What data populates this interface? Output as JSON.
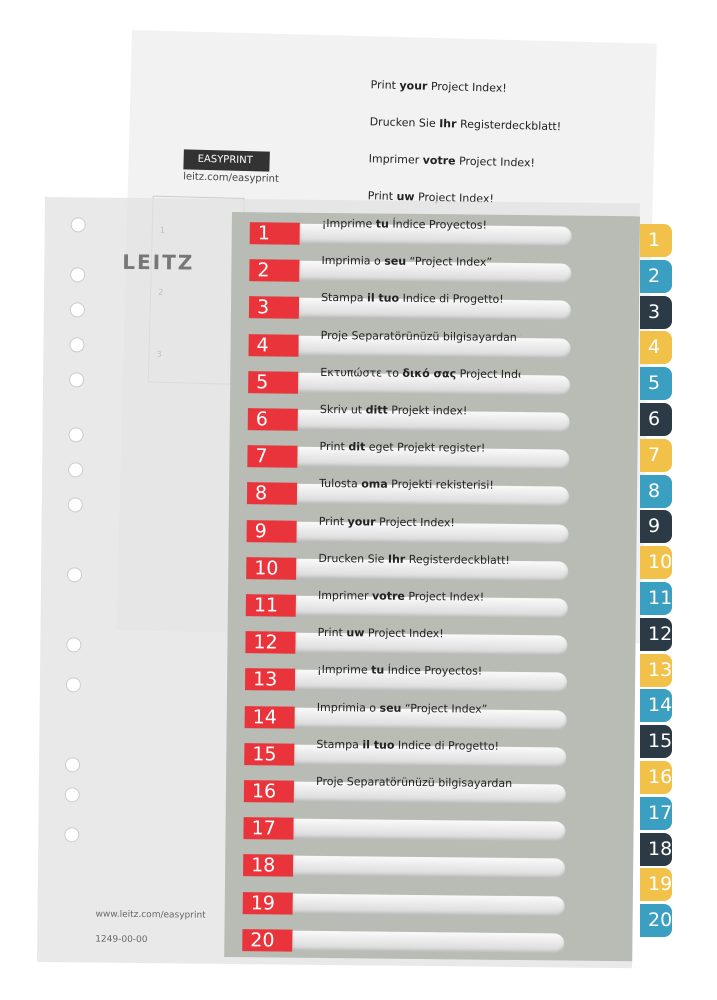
{
  "back_sheet": {
    "lines": [
      [
        "Print ",
        "your",
        " Project Index!"
      ],
      [
        "Drucken Sie ",
        "Ihr",
        " Registerdeckblatt!"
      ],
      [
        "Imprimer ",
        "votre",
        " Project Index!"
      ],
      [
        "Print ",
        "uw",
        " Project Index!"
      ]
    ],
    "badge": "EASYPRINT",
    "badge_url": "leitz.com/easyprint",
    "steps": [
      "1",
      "2",
      "3"
    ]
  },
  "logo": "LEITZ",
  "rows": [
    {
      "number": "1",
      "text": [
        "¡Imprime ",
        "tu",
        " Índice Proyectos!"
      ]
    },
    {
      "number": "2",
      "text": [
        "Imprimia o ",
        "seu",
        " “Project Index”"
      ]
    },
    {
      "number": "3",
      "text": [
        "Stampa ",
        "il tuo",
        " Indice di Progetto!"
      ]
    },
    {
      "number": "4",
      "text": [
        "Proje Separatörünüzü bilgisayardan yazdırabi",
        "",
        ""
      ]
    },
    {
      "number": "5",
      "text": [
        "Εκτυπώστε το ",
        "δικό σας",
        " Project Index!"
      ]
    },
    {
      "number": "6",
      "text": [
        "Skriv ut ",
        "ditt",
        " Projekt index!"
      ]
    },
    {
      "number": "7",
      "text": [
        "Print ",
        "dit",
        " eget Projekt register!"
      ]
    },
    {
      "number": "8",
      "text": [
        "Tulosta ",
        "oma",
        " Projekti rekisterisi!"
      ]
    },
    {
      "number": "9",
      "text": [
        "Print ",
        "your",
        " Project Index!"
      ]
    },
    {
      "number": "10",
      "text": [
        "Drucken Sie ",
        "Ihr",
        " Registerdeckblatt!"
      ]
    },
    {
      "number": "11",
      "text": [
        "Imprimer ",
        "votre",
        " Project Index!"
      ]
    },
    {
      "number": "12",
      "text": [
        "Print ",
        "uw",
        " Project Index!"
      ]
    },
    {
      "number": "13",
      "text": [
        "¡Imprime ",
        "tu",
        " Índice Proyectos!"
      ]
    },
    {
      "number": "14",
      "text": [
        "Imprimia o ",
        "seu",
        " “Project Index”"
      ]
    },
    {
      "number": "15",
      "text": [
        "Stampa ",
        "il tuo",
        " Indice di Progetto!"
      ]
    },
    {
      "number": "16",
      "text": [
        "Proje Separatörünüzü bilgisayardan yazdırabilirsin",
        "",
        ""
      ]
    },
    {
      "number": "17"
    },
    {
      "number": "18"
    },
    {
      "number": "19"
    },
    {
      "number": "20"
    }
  ],
  "tabs": [
    "1",
    "2",
    "3",
    "4",
    "5",
    "6",
    "7",
    "8",
    "9",
    "10",
    "11",
    "12",
    "13",
    "14",
    "15",
    "16",
    "17",
    "18",
    "19",
    "20"
  ],
  "footer": {
    "url": "www.leitz.com/easyprint",
    "code": "1249-00-00"
  }
}
